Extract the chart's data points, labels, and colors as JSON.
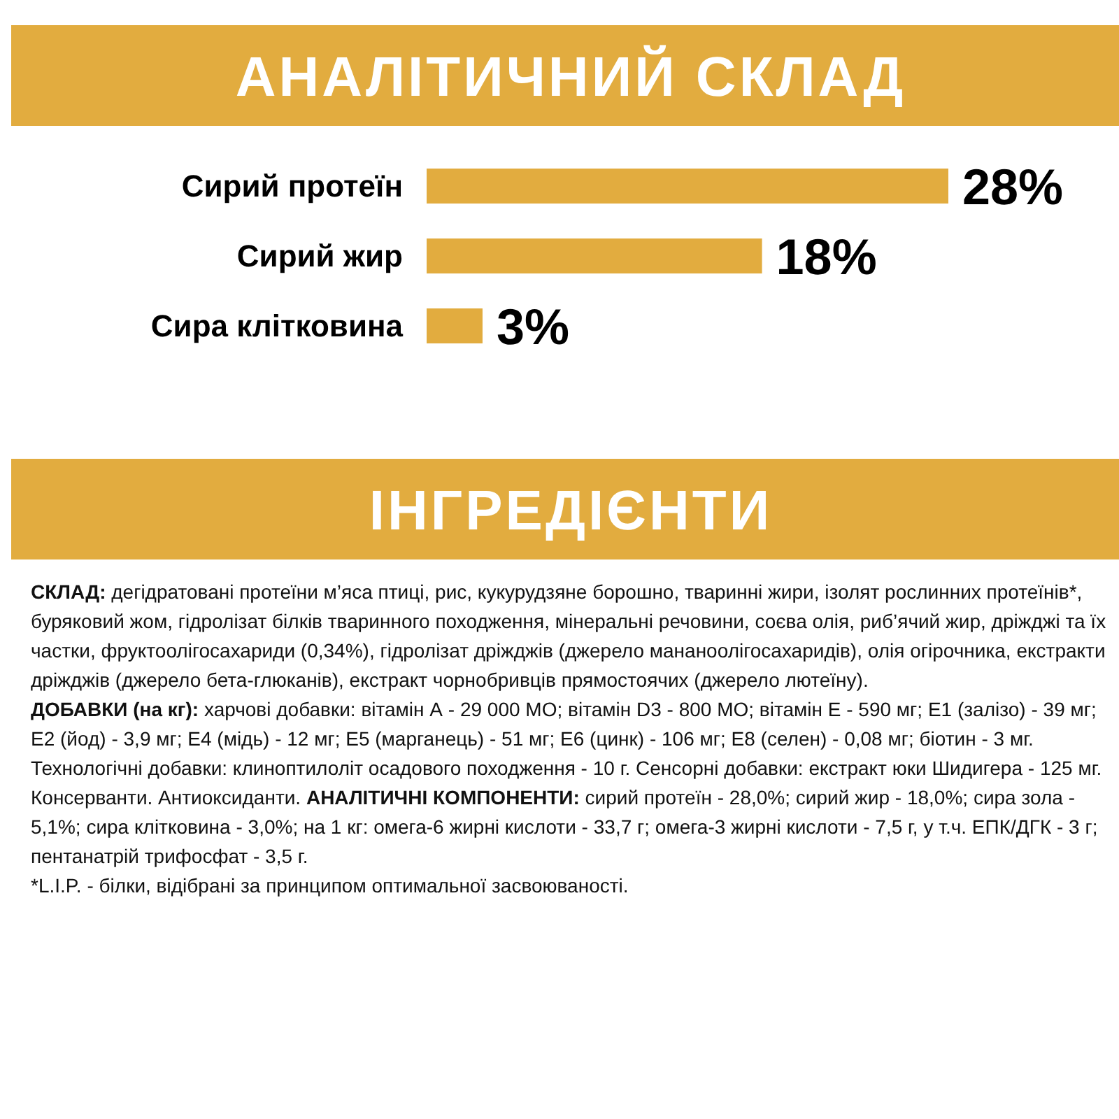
{
  "chart_data": {
    "type": "bar",
    "orientation": "horizontal",
    "title": "АНАЛІТИЧНИЙ СКЛАД",
    "categories": [
      "Сирий протеїн",
      "Сирий жир",
      "Сира клітковина"
    ],
    "values": [
      28,
      18,
      3
    ],
    "value_labels": [
      "28%",
      "18%",
      "3%"
    ],
    "color": "#e2ac3f",
    "annotations": [
      "ІНГРЕДІЄНТИ",
      "СКЛАД:",
      "дегідратовані протеїни м’яса птиці, рис, кукурудзяне борошно, тваринні жири, ізолят рослинних протеїнів*, буряковий жом, гідролізат білків тваринного походження, мінеральні речовини, соєва олія, риб’ячий жир, дріжджі та їх частки, фруктоолігосахариди (0,34%), гідролізат дріжджів (джерело мананоолігосахаридів), олія огірочника, екстракти дріжджів (джерело бета-глюканів), екстракт чорнобривців прямостоячих (джерело лютеїну).",
      "ДОБАВКИ (на кг):",
      "харчові добавки: вітамін А - 29 000 МО; вітамін D3 - 800 МО; вітамін Е - 590 мг; Е1 (залізо) - 39 мг; Е2 (йод) - 3,9 мг; Е4 (мідь) - 12 мг; Е5 (марганець) - 51 мг; Е6 (цинк) - 106 мг; Е8 (селен) - 0,08 мг; біотин - 3 мг. Технологічні добавки: клиноптилоліт осадового походження - 10 г. Сенсорні добавки: екстракт юки Шидигера - 125 мг. Консерванти. Антиоксиданти.",
      "АНАЛІТИЧНІ КОМПОНЕНТИ:",
      "сирий протеїн - 28,0%; сирий жир - 18,0%; сира зола - 5,1%; сира клітковина - 3,0%; на 1 кг: омега-6 жирні кислоти - 33,7 г; омега-3 жирні кислоти - 7,5 г, у т.ч. ЕПК/ДГК - 3 г; пентанатрій трифосфат - 3,5 г.",
      "*L.I.P. - білки, відібрані за принципом оптимальної засвоюваності."
    ]
  }
}
